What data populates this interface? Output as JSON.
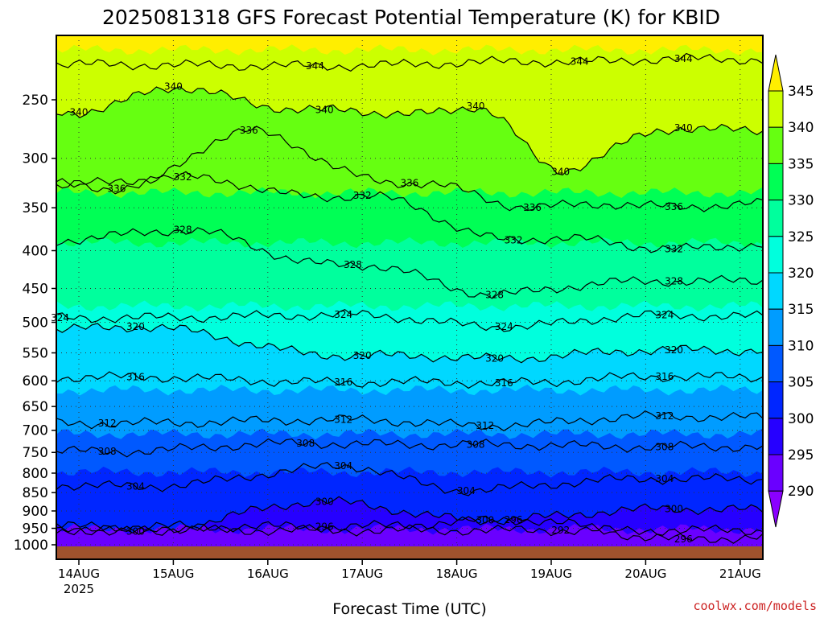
{
  "title": "2025081318 GFS Forecast Potential Temperature (K) for KBID",
  "credit": "coolwx.com/models",
  "colors": {
    "credit": "#cc2222",
    "ground": "#a0522d",
    "contour": "#000000",
    "gridline": "#333333"
  },
  "chart_data": {
    "type": "heatmap",
    "title": "2025081318 GFS Forecast Potential Temperature (K) for KBID",
    "xlabel": "Forecast Time (UTC)",
    "ylabel": "",
    "y_scale": "log",
    "y_reversed": true,
    "y_ticks": [
      "250",
      "300",
      "350",
      "400",
      "450",
      "500",
      "550",
      "600",
      "650",
      "700",
      "750",
      "800",
      "850",
      "900",
      "950",
      "1000"
    ],
    "x_ticks": [
      {
        "label": "14AUG",
        "sublabel": "2025"
      },
      {
        "label": "15AUG",
        "sublabel": ""
      },
      {
        "label": "16AUG",
        "sublabel": ""
      },
      {
        "label": "17AUG",
        "sublabel": ""
      },
      {
        "label": "18AUG",
        "sublabel": ""
      },
      {
        "label": "19AUG",
        "sublabel": ""
      },
      {
        "label": "20AUG",
        "sublabel": ""
      },
      {
        "label": "21AUG",
        "sublabel": ""
      }
    ],
    "grid": true,
    "colorbar": {
      "ticks": [
        "345",
        "340",
        "335",
        "330",
        "325",
        "320",
        "315",
        "310",
        "305",
        "300",
        "295",
        "290"
      ],
      "levels": [
        {
          "range": "<290",
          "color": "#8a00ff"
        },
        {
          "range": "290-295",
          "color": "#6a00ff"
        },
        {
          "range": "295-300",
          "color": "#2600ff"
        },
        {
          "range": "300-305",
          "color": "#0026ff"
        },
        {
          "range": "305-310",
          "color": "#0059ff"
        },
        {
          "range": "310-315",
          "color": "#009cff"
        },
        {
          "range": "315-320",
          "color": "#00d8ff"
        },
        {
          "range": "320-325",
          "color": "#00ffdd"
        },
        {
          "range": "325-330",
          "color": "#00ff9d"
        },
        {
          "range": "330-335",
          "color": "#00ff55"
        },
        {
          "range": "335-340",
          "color": "#66ff11"
        },
        {
          "range": "340-345",
          "color": "#ccff00"
        },
        {
          "range": ">345",
          "color": "#ffee00"
        }
      ]
    },
    "contour_labels": [
      {
        "value": "344",
        "x": "16.5AUG",
        "p": 225
      },
      {
        "value": "344",
        "x": "19.3AUG",
        "p": 222
      },
      {
        "value": "344",
        "x": "20.4AUG",
        "p": 220
      },
      {
        "value": "340",
        "x": "14.0AUG",
        "p": 260
      },
      {
        "value": "340",
        "x": "15.0AUG",
        "p": 240
      },
      {
        "value": "340",
        "x": "16.6AUG",
        "p": 258
      },
      {
        "value": "340",
        "x": "18.2AUG",
        "p": 255
      },
      {
        "value": "340",
        "x": "19.1AUG",
        "p": 313
      },
      {
        "value": "340",
        "x": "20.4AUG",
        "p": 273
      },
      {
        "value": "336",
        "x": "14.4AUG",
        "p": 330
      },
      {
        "value": "336",
        "x": "15.8AUG",
        "p": 275
      },
      {
        "value": "336",
        "x": "17.5AUG",
        "p": 324
      },
      {
        "value": "336",
        "x": "18.8AUG",
        "p": 350
      },
      {
        "value": "336",
        "x": "20.3AUG",
        "p": 349
      },
      {
        "value": "332",
        "x": "15.1AUG",
        "p": 318
      },
      {
        "value": "332",
        "x": "17.0AUG",
        "p": 337
      },
      {
        "value": "332",
        "x": "18.6AUG",
        "p": 387
      },
      {
        "value": "332",
        "x": "20.3AUG",
        "p": 398
      },
      {
        "value": "328",
        "x": "15.1AUG",
        "p": 375
      },
      {
        "value": "328",
        "x": "16.9AUG",
        "p": 418
      },
      {
        "value": "328",
        "x": "18.4AUG",
        "p": 459
      },
      {
        "value": "328",
        "x": "20.3AUG",
        "p": 440
      },
      {
        "value": "324",
        "x": "13.8AUG",
        "p": 493
      },
      {
        "value": "324",
        "x": "16.8AUG",
        "p": 488
      },
      {
        "value": "324",
        "x": "18.5AUG",
        "p": 507
      },
      {
        "value": "324",
        "x": "20.2AUG",
        "p": 489
      },
      {
        "value": "320",
        "x": "14.6AUG",
        "p": 507
      },
      {
        "value": "320",
        "x": "17.0AUG",
        "p": 555
      },
      {
        "value": "320",
        "x": "18.4AUG",
        "p": 560
      },
      {
        "value": "320",
        "x": "20.3AUG",
        "p": 545
      },
      {
        "value": "316",
        "x": "14.6AUG",
        "p": 593
      },
      {
        "value": "316",
        "x": "16.8AUG",
        "p": 603
      },
      {
        "value": "316",
        "x": "18.5AUG",
        "p": 604
      },
      {
        "value": "316",
        "x": "20.2AUG",
        "p": 592
      },
      {
        "value": "312",
        "x": "14.3AUG",
        "p": 685
      },
      {
        "value": "312",
        "x": "16.8AUG",
        "p": 677
      },
      {
        "value": "312",
        "x": "18.3AUG",
        "p": 690
      },
      {
        "value": "312",
        "x": "20.2AUG",
        "p": 670
      },
      {
        "value": "308",
        "x": "14.3AUG",
        "p": 748
      },
      {
        "value": "308",
        "x": "16.4AUG",
        "p": 729
      },
      {
        "value": "308",
        "x": "18.2AUG",
        "p": 732
      },
      {
        "value": "308",
        "x": "20.2AUG",
        "p": 737
      },
      {
        "value": "304",
        "x": "14.6AUG",
        "p": 834
      },
      {
        "value": "304",
        "x": "16.8AUG",
        "p": 782
      },
      {
        "value": "304",
        "x": "18.1AUG",
        "p": 845
      },
      {
        "value": "304",
        "x": "20.2AUG",
        "p": 814
      },
      {
        "value": "300",
        "x": "16.6AUG",
        "p": 874
      },
      {
        "value": "300",
        "x": "18.3AUG",
        "p": 926
      },
      {
        "value": "300",
        "x": "20.3AUG",
        "p": 894
      },
      {
        "value": "300",
        "x": "14.6AUG",
        "p": 960
      },
      {
        "value": "296",
        "x": "16.6AUG",
        "p": 945
      },
      {
        "value": "296",
        "x": "18.6AUG",
        "p": 925
      },
      {
        "value": "296",
        "x": "20.4AUG",
        "p": 983
      },
      {
        "value": "292",
        "x": "19.1AUG",
        "p": 956
      }
    ]
  }
}
